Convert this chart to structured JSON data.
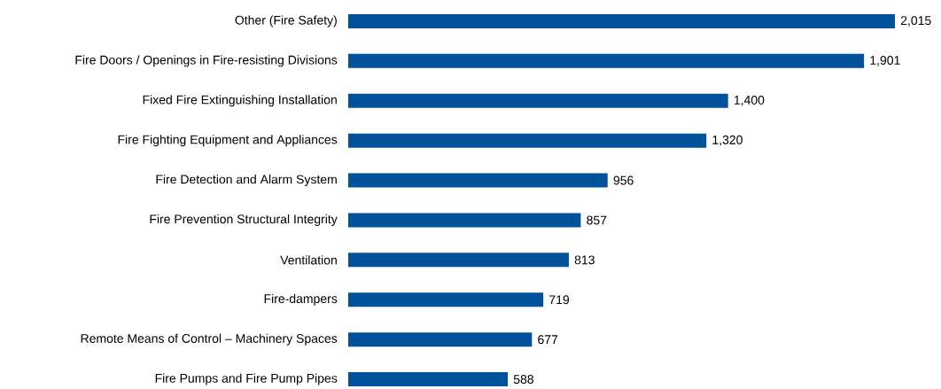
{
  "chart_data": {
    "type": "bar",
    "orientation": "horizontal",
    "categories": [
      "Other (Fire Safety)",
      "Fire Doors / Openings in Fire-resisting Divisions",
      "Fixed Fire Extinguishing Installation",
      "Fire Fighting Equipment and Appliances",
      "Fire Detection and Alarm System",
      "Fire Prevention Structural Integrity",
      "Ventilation",
      "Fire-dampers",
      "Remote Means of Control – Machinery Spaces",
      "Fire Pumps and Fire Pump Pipes"
    ],
    "values": [
      2015,
      1901,
      1400,
      1320,
      956,
      857,
      813,
      719,
      677,
      588
    ],
    "color": "#02529b",
    "value_labels": [
      "2,015",
      "1,901",
      "1,400",
      "1,320",
      "956",
      "857",
      "813",
      "719",
      "677",
      "588"
    ]
  }
}
